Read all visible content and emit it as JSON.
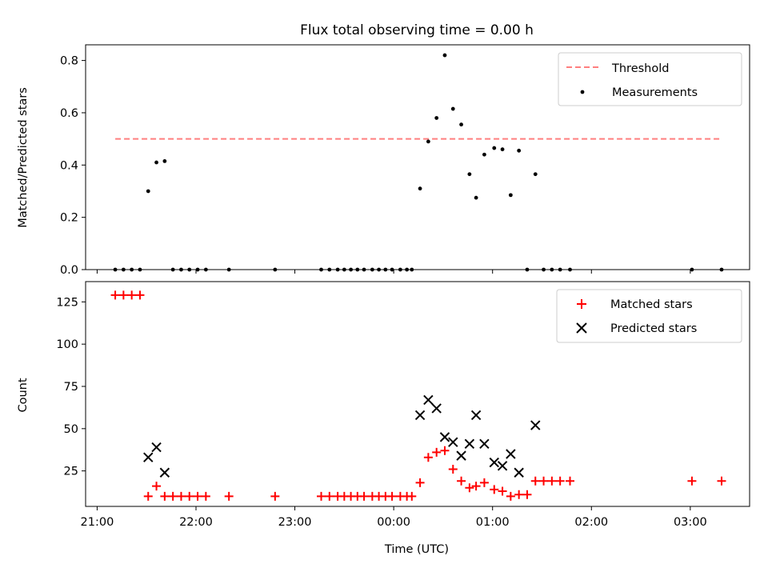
{
  "chart_data": [
    {
      "type": "scatter",
      "title": "Flux total observing time = 0.00 h",
      "xlabel": "",
      "ylabel": "Matched/Predicted stars",
      "ylim": [
        0,
        0.86
      ],
      "yticks": [
        "0.0",
        "0.2",
        "0.4",
        "0.6",
        "0.8"
      ],
      "ytick_values": [
        0,
        0.2,
        0.4,
        0.6,
        0.8
      ],
      "grid": false,
      "legend_position": "top-right",
      "threshold": {
        "name": "Threshold",
        "value": 0.5,
        "x_start": "21:11",
        "x_end": "03:19",
        "color": "#ff7f7f"
      },
      "series": [
        {
          "name": "Measurements",
          "color": "#000000",
          "points": [
            [
              "21:11",
              0
            ],
            [
              "21:16",
              0
            ],
            [
              "21:21",
              0
            ],
            [
              "21:26",
              0
            ],
            [
              "21:31",
              0.3
            ],
            [
              "21:36",
              0.41
            ],
            [
              "21:41",
              0.415
            ],
            [
              "21:46",
              0
            ],
            [
              "21:51",
              0
            ],
            [
              "21:56",
              0
            ],
            [
              "22:01",
              0
            ],
            [
              "22:06",
              0
            ],
            [
              "22:20",
              0
            ],
            [
              "22:48",
              0
            ],
            [
              "23:16",
              0
            ],
            [
              "23:21",
              0
            ],
            [
              "23:26",
              0
            ],
            [
              "23:30",
              0
            ],
            [
              "23:34",
              0
            ],
            [
              "23:38",
              0
            ],
            [
              "23:42",
              0
            ],
            [
              "23:47",
              0
            ],
            [
              "23:51",
              0
            ],
            [
              "23:55",
              0
            ],
            [
              "23:59",
              0
            ],
            [
              "00:04",
              0
            ],
            [
              "00:08",
              0
            ],
            [
              "00:11",
              0
            ],
            [
              "00:16",
              0.31
            ],
            [
              "00:21",
              0.49
            ],
            [
              "00:26",
              0.58
            ],
            [
              "00:31",
              0.82
            ],
            [
              "00:36",
              0.615
            ],
            [
              "00:41",
              0.555
            ],
            [
              "00:46",
              0.365
            ],
            [
              "00:50",
              0.275
            ],
            [
              "00:55",
              0.44
            ],
            [
              "01:01",
              0.465
            ],
            [
              "01:06",
              0.46
            ],
            [
              "01:11",
              0.285
            ],
            [
              "01:16",
              0.455
            ],
            [
              "01:21",
              0
            ],
            [
              "01:26",
              0.365
            ],
            [
              "01:31",
              0
            ],
            [
              "01:36",
              0
            ],
            [
              "01:41",
              0
            ],
            [
              "01:47",
              0
            ],
            [
              "03:01",
              0
            ],
            [
              "03:19",
              0
            ]
          ]
        }
      ]
    },
    {
      "type": "scatter",
      "title": "",
      "xlabel": "Time (UTC)",
      "ylabel": "Count",
      "ylim": [
        4,
        137
      ],
      "yticks": [
        "25",
        "50",
        "75",
        "100",
        "125"
      ],
      "ytick_values": [
        25,
        50,
        75,
        100,
        125
      ],
      "x_range": [
        "20:53",
        "03:36"
      ],
      "xticks": [
        "21:00",
        "22:00",
        "23:00",
        "00:00",
        "01:00",
        "02:00",
        "03:00"
      ],
      "grid": false,
      "legend_position": "top-right",
      "series": [
        {
          "name": "Matched stars",
          "color": "#ff0000",
          "marker": "+",
          "points": [
            [
              "21:11",
              129
            ],
            [
              "21:16",
              129
            ],
            [
              "21:21",
              129
            ],
            [
              "21:26",
              129
            ],
            [
              "21:31",
              10
            ],
            [
              "21:36",
              16
            ],
            [
              "21:41",
              10
            ],
            [
              "21:46",
              10
            ],
            [
              "21:51",
              10
            ],
            [
              "21:56",
              10
            ],
            [
              "22:01",
              10
            ],
            [
              "22:06",
              10
            ],
            [
              "22:20",
              10
            ],
            [
              "22:48",
              10
            ],
            [
              "23:16",
              10
            ],
            [
              "23:21",
              10
            ],
            [
              "23:26",
              10
            ],
            [
              "23:30",
              10
            ],
            [
              "23:34",
              10
            ],
            [
              "23:38",
              10
            ],
            [
              "23:42",
              10
            ],
            [
              "23:47",
              10
            ],
            [
              "23:51",
              10
            ],
            [
              "23:55",
              10
            ],
            [
              "23:59",
              10
            ],
            [
              "00:04",
              10
            ],
            [
              "00:08",
              10
            ],
            [
              "00:11",
              10
            ],
            [
              "00:16",
              18
            ],
            [
              "00:21",
              33
            ],
            [
              "00:26",
              36
            ],
            [
              "00:31",
              37
            ],
            [
              "00:36",
              26
            ],
            [
              "00:41",
              19
            ],
            [
              "00:46",
              15
            ],
            [
              "00:50",
              16
            ],
            [
              "00:55",
              18
            ],
            [
              "01:01",
              14
            ],
            [
              "01:06",
              13
            ],
            [
              "01:11",
              10
            ],
            [
              "01:16",
              11
            ],
            [
              "01:21",
              11
            ],
            [
              "01:26",
              19
            ],
            [
              "01:31",
              19
            ],
            [
              "01:36",
              19
            ],
            [
              "01:41",
              19
            ],
            [
              "01:47",
              19
            ],
            [
              "03:01",
              19
            ],
            [
              "03:19",
              19
            ]
          ]
        },
        {
          "name": "Predicted stars",
          "color": "#000000",
          "marker": "x",
          "points": [
            [
              "21:31",
              33
            ],
            [
              "21:36",
              39
            ],
            [
              "21:41",
              24
            ],
            [
              "00:16",
              58
            ],
            [
              "00:21",
              67
            ],
            [
              "00:26",
              62
            ],
            [
              "00:31",
              45
            ],
            [
              "00:36",
              42
            ],
            [
              "00:41",
              34
            ],
            [
              "00:46",
              41
            ],
            [
              "00:50",
              58
            ],
            [
              "00:55",
              41
            ],
            [
              "01:01",
              30
            ],
            [
              "01:06",
              28
            ],
            [
              "01:11",
              35
            ],
            [
              "01:16",
              24
            ],
            [
              "01:26",
              52
            ]
          ]
        }
      ]
    }
  ]
}
